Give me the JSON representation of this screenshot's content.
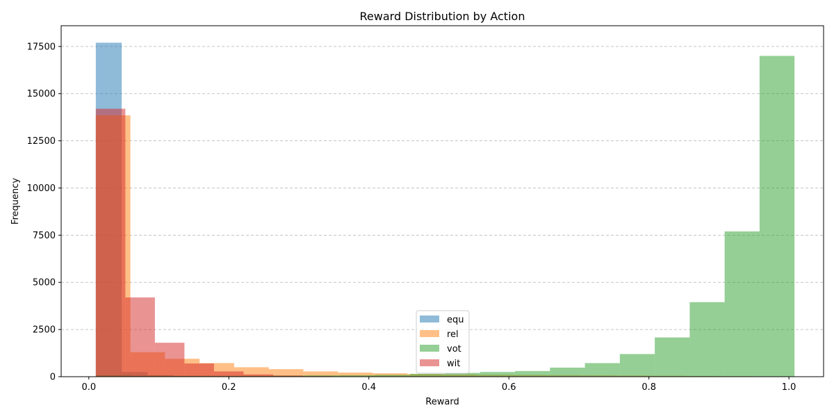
{
  "chart_data": {
    "type": "bar",
    "title": "Reward Distribution by Action",
    "xlabel": "Reward",
    "ylabel": "Frequency",
    "xlim": [
      -0.0395,
      1.0495
    ],
    "ylim": [
      0,
      18600
    ],
    "xticks": [
      0.0,
      0.2,
      0.4,
      0.6,
      0.8,
      1.0
    ],
    "xtick_labels": [
      "0.0",
      "0.2",
      "0.4",
      "0.6",
      "0.8",
      "1.0"
    ],
    "yticks": [
      0,
      2500,
      5000,
      7500,
      10000,
      12500,
      15000,
      17500
    ],
    "ytick_labels": [
      "0",
      "2500",
      "5000",
      "7500",
      "10000",
      "12500",
      "15000",
      "17500"
    ],
    "grid": "y-dashed",
    "legend_position": "lower-center",
    "series": [
      {
        "name": "equ",
        "color": "#1f77b4",
        "alpha": 0.5,
        "bin_edges": [
          0.01,
          0.047,
          0.084,
          0.121,
          0.158,
          0.195,
          0.232
        ],
        "counts": [
          17700,
          250,
          80,
          30,
          10,
          5
        ]
      },
      {
        "name": "rel",
        "color": "#ff7f0e",
        "alpha": 0.5,
        "bin_edges": [
          0.01,
          0.0594,
          0.1088,
          0.1582,
          0.2076,
          0.257,
          0.3064,
          0.3558,
          0.4052,
          0.4546,
          0.504,
          0.5534,
          0.6028,
          0.6522,
          0.7016,
          0.751,
          0.8004,
          0.8498,
          0.8992,
          0.9486,
          0.998
        ],
        "counts": [
          13850,
          1300,
          950,
          720,
          500,
          400,
          280,
          220,
          180,
          140,
          120,
          100,
          90,
          80,
          70,
          60,
          50,
          40,
          30,
          20
        ]
      },
      {
        "name": "vot",
        "color": "#2ca02c",
        "alpha": 0.5,
        "bin_edges": [
          0.01,
          0.0599,
          0.1098,
          0.1597,
          0.2096,
          0.2595,
          0.3094,
          0.3593,
          0.4092,
          0.4591,
          0.509,
          0.5589,
          0.6088,
          0.6587,
          0.7086,
          0.7585,
          0.8084,
          0.8583,
          0.9082,
          0.9581,
          1.008
        ],
        "counts": [
          80,
          60,
          50,
          50,
          50,
          60,
          70,
          80,
          100,
          150,
          200,
          250,
          300,
          480,
          720,
          1200,
          2080,
          3950,
          7700,
          17000
        ]
      },
      {
        "name": "wit",
        "color": "#d62728",
        "alpha": 0.5,
        "bin_edges": [
          0.01,
          0.0522,
          0.0944,
          0.1366,
          0.1788,
          0.221,
          0.2632,
          0.3054,
          0.3476,
          0.3898,
          0.432
        ],
        "counts": [
          14200,
          4200,
          1800,
          700,
          280,
          120,
          60,
          30,
          15,
          5
        ]
      }
    ]
  }
}
